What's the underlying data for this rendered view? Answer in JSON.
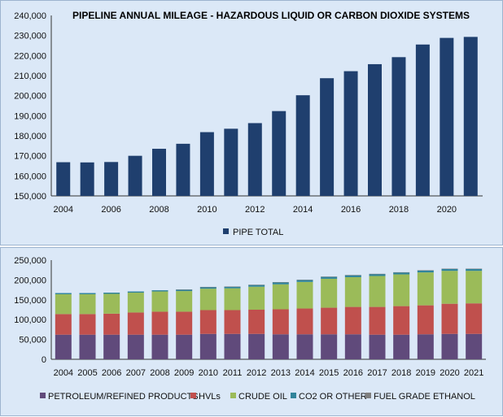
{
  "chart_data": [
    {
      "type": "bar",
      "title": "PIPELINE ANNUAL MILEAGE - HAZARDOUS LIQUID OR CARBON DIOXIDE SYSTEMS",
      "categories": [
        "2004",
        "2005",
        "2006",
        "2007",
        "2008",
        "2009",
        "2010",
        "2011",
        "2012",
        "2013",
        "2014",
        "2015",
        "2016",
        "2017",
        "2018",
        "2019",
        "2020",
        "2021"
      ],
      "x_tick_labels": [
        "2004",
        "2006",
        "2008",
        "2010",
        "2012",
        "2014",
        "2016",
        "2018",
        "2020"
      ],
      "series": [
        {
          "name": "PIPE TOTAL",
          "color": "#1f3f6e",
          "values": [
            166800,
            166700,
            166900,
            170000,
            173500,
            176000,
            181800,
            183500,
            186300,
            192300,
            200200,
            208700,
            212200,
            215700,
            219200,
            225500,
            228800,
            229300
          ]
        }
      ],
      "ylim": [
        150000,
        240000
      ],
      "y_ticks": [
        "150,000",
        "160,000",
        "170,000",
        "180,000",
        "190,000",
        "200,000",
        "210,000",
        "220,000",
        "230,000",
        "240,000"
      ],
      "legend_position": "bottom",
      "grid": false
    },
    {
      "type": "bar",
      "stacked": true,
      "categories": [
        "2004",
        "2005",
        "2006",
        "2007",
        "2008",
        "2009",
        "2010",
        "2011",
        "2012",
        "2013",
        "2014",
        "2015",
        "2016",
        "2017",
        "2018",
        "2019",
        "2020",
        "2021"
      ],
      "series": [
        {
          "name": "PETROLEUM/REFINED PRODUCTS",
          "color": "#604a7b",
          "values": [
            62000,
            62000,
            62000,
            62000,
            62000,
            62000,
            64000,
            64000,
            64000,
            63000,
            63000,
            63000,
            63000,
            62000,
            62000,
            63000,
            64000,
            64000
          ]
        },
        {
          "name": "HVLs",
          "color": "#c0504d",
          "values": [
            52000,
            52000,
            53000,
            56000,
            58000,
            58000,
            60000,
            60000,
            61000,
            63000,
            65000,
            67000,
            69000,
            70000,
            72000,
            73000,
            76000,
            77000
          ]
        },
        {
          "name": "CRUDE OIL",
          "color": "#9bbb59",
          "values": [
            50000,
            50000,
            50000,
            50000,
            51000,
            52000,
            54000,
            55000,
            58000,
            63000,
            67000,
            73000,
            75000,
            78000,
            80000,
            83000,
            83000,
            82000
          ]
        },
        {
          "name": "CO2 OR OTHER",
          "color": "#31849b",
          "values": [
            3000,
            3000,
            3000,
            3000,
            3000,
            3500,
            4000,
            4000,
            4500,
            5000,
            5000,
            5000,
            5000,
            5000,
            5000,
            5000,
            5000,
            5000
          ]
        },
        {
          "name": "FUEL GRADE ETHANOL",
          "color": "#7f7f7f",
          "values": [
            0,
            0,
            0,
            0,
            0,
            500,
            500,
            500,
            500,
            500,
            500,
            500,
            500,
            500,
            500,
            500,
            500,
            500
          ]
        }
      ],
      "ylim": [
        0,
        250000
      ],
      "y_ticks": [
        "0",
        "50,000",
        "100,000",
        "150,000",
        "200,000",
        "250,000"
      ],
      "legend_position": "bottom",
      "grid": false
    }
  ]
}
